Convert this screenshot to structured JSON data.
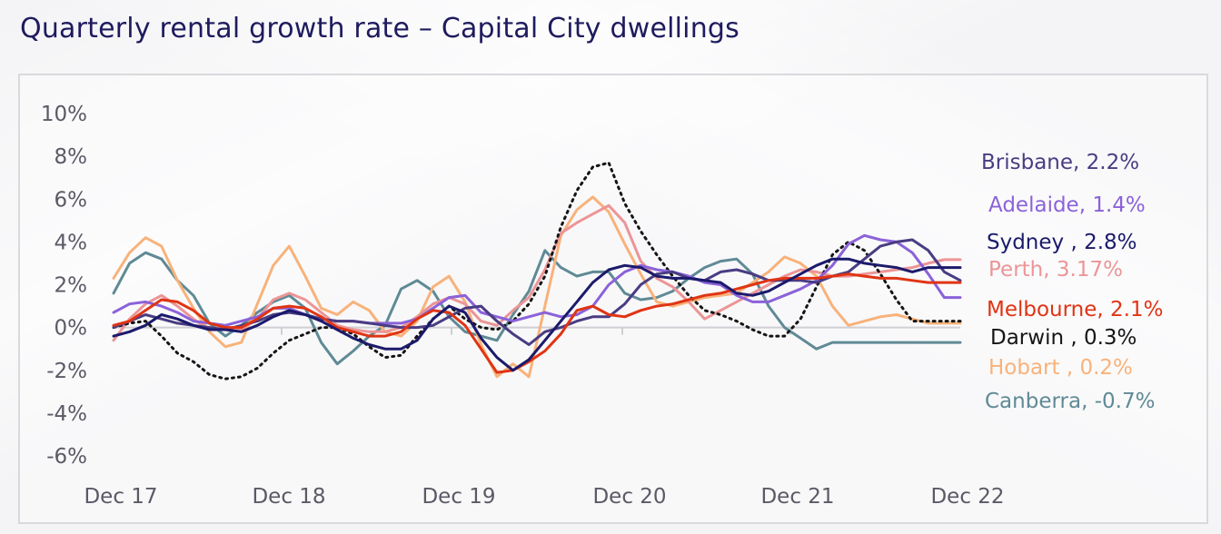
{
  "title": "Quarterly rental growth rate – Capital City dwellings",
  "chart_data": {
    "type": "line",
    "title": "Quarterly rental growth rate – Capital City dwellings",
    "ylim": [
      -6,
      10
    ],
    "y_ticks": [
      "10%",
      "8%",
      "6%",
      "4%",
      "2%",
      "0%",
      "-2%",
      "-4%",
      "-6%"
    ],
    "x_ticks": [
      "Dec 17",
      "Dec 18",
      "Dec 19",
      "Dec 20",
      "Dec 21",
      "Dec 22"
    ],
    "x_start": "Dec 17",
    "x_end": "Dec 22",
    "x_unit": "monthly",
    "grid": false,
    "legend": "right, direct labels",
    "series": [
      {
        "name": "Brisbane",
        "label": "Brisbane, 2.2%",
        "color": "#4a3c82",
        "dashed": false,
        "values": [
          0.0,
          0.3,
          0.6,
          0.4,
          0.2,
          0.1,
          0.0,
          -0.1,
          0.1,
          0.3,
          0.6,
          0.7,
          0.6,
          0.4,
          0.3,
          0.3,
          0.2,
          0.1,
          0.0,
          0.0,
          0.1,
          0.5,
          0.9,
          1.0,
          0.3,
          -0.3,
          -0.8,
          -0.2,
          0.0,
          0.3,
          0.5,
          0.5,
          1.1,
          2.0,
          2.5,
          2.6,
          2.3,
          2.2,
          2.6,
          2.7,
          2.5,
          2.2,
          2.2,
          2.2,
          2.1,
          2.4,
          2.6,
          3.2,
          3.8,
          4.0,
          4.1,
          3.6,
          2.6,
          2.2
        ]
      },
      {
        "name": "Adelaide",
        "label": "Adelaide, 1.4%",
        "color": "#8b62d9",
        "dashed": false,
        "values": [
          0.7,
          1.1,
          1.2,
          1.0,
          0.7,
          0.3,
          0.2,
          0.1,
          0.3,
          0.5,
          0.9,
          0.9,
          0.6,
          0.4,
          0.3,
          0.3,
          0.2,
          0.2,
          0.2,
          0.4,
          0.9,
          1.4,
          1.5,
          0.7,
          0.5,
          0.3,
          0.5,
          0.7,
          0.5,
          0.6,
          1.0,
          2.0,
          2.6,
          2.9,
          2.7,
          2.6,
          2.4,
          2.1,
          2.0,
          1.5,
          1.2,
          1.2,
          1.5,
          1.8,
          2.2,
          2.9,
          3.9,
          4.3,
          4.1,
          4.0,
          3.5,
          2.5,
          1.4,
          1.4
        ]
      },
      {
        "name": "Sydney",
        "label": "Sydney , 2.8%",
        "color": "#1b1a6b",
        "dashed": false,
        "values": [
          -0.4,
          -0.2,
          0.1,
          0.6,
          0.4,
          0.1,
          -0.1,
          -0.1,
          -0.2,
          0.1,
          0.5,
          0.8,
          0.6,
          0.3,
          -0.1,
          -0.5,
          -0.8,
          -1.0,
          -1.0,
          -0.6,
          0.4,
          1.0,
          0.7,
          -0.5,
          -1.4,
          -2.0,
          -1.5,
          -0.6,
          0.3,
          1.2,
          2.1,
          2.7,
          2.9,
          2.8,
          2.4,
          2.3,
          2.3,
          2.2,
          2.1,
          1.6,
          1.5,
          1.7,
          2.1,
          2.5,
          2.9,
          3.2,
          3.2,
          3.0,
          2.9,
          2.8,
          2.6,
          2.8,
          2.8,
          2.8
        ]
      },
      {
        "name": "Perth",
        "label": "Perth, 3.17%",
        "color": "#ec9596",
        "dashed": false,
        "values": [
          -0.6,
          0.4,
          1.1,
          1.5,
          1.0,
          0.4,
          -0.1,
          -0.1,
          -0.1,
          0.4,
          1.3,
          1.6,
          1.3,
          0.7,
          0.1,
          -0.1,
          -0.2,
          -0.2,
          0.0,
          0.5,
          1.1,
          1.4,
          1.1,
          0.3,
          0.1,
          0.8,
          1.4,
          2.7,
          4.4,
          4.9,
          5.3,
          5.7,
          4.9,
          3.1,
          2.3,
          1.9,
          1.2,
          0.4,
          0.8,
          1.2,
          1.6,
          2.0,
          2.4,
          2.7,
          2.6,
          2.4,
          2.4,
          2.5,
          2.6,
          2.7,
          2.8,
          3.0,
          3.17,
          3.17
        ]
      },
      {
        "name": "Melbourne",
        "label": "Melbourne, 2.1%",
        "color": "#e03414",
        "dashed": false,
        "values": [
          0.1,
          0.3,
          0.8,
          1.3,
          1.2,
          0.8,
          0.2,
          0.0,
          0.0,
          0.4,
          0.9,
          1.0,
          0.9,
          0.5,
          0.0,
          -0.2,
          -0.4,
          -0.4,
          -0.2,
          0.4,
          0.8,
          0.7,
          0.1,
          -1.0,
          -2.1,
          -2.0,
          -1.6,
          -1.1,
          -0.3,
          0.8,
          1.0,
          0.6,
          0.5,
          0.8,
          1.0,
          1.1,
          1.3,
          1.5,
          1.6,
          1.8,
          2.0,
          2.2,
          2.3,
          2.3,
          2.3,
          2.4,
          2.5,
          2.4,
          2.3,
          2.3,
          2.2,
          2.1,
          2.1,
          2.1
        ]
      },
      {
        "name": "Darwin",
        "label": "Darwin , 0.3%",
        "color": "#151515",
        "dashed": true,
        "values": [
          0.0,
          0.2,
          0.3,
          -0.4,
          -1.2,
          -1.6,
          -2.2,
          -2.4,
          -2.3,
          -1.9,
          -1.2,
          -0.6,
          -0.3,
          0.0,
          0.0,
          -0.3,
          -0.9,
          -1.4,
          -1.3,
          -0.4,
          0.4,
          1.0,
          0.4,
          0.0,
          -0.1,
          0.3,
          1.1,
          2.4,
          4.7,
          6.4,
          7.5,
          7.7,
          5.8,
          4.5,
          3.4,
          2.4,
          1.5,
          0.8,
          0.6,
          0.3,
          -0.1,
          -0.4,
          -0.4,
          0.4,
          1.9,
          3.4,
          4.0,
          3.6,
          2.5,
          1.3,
          0.3,
          0.3,
          0.3,
          0.3
        ]
      },
      {
        "name": "Hobart",
        "label": "Hobart , 0.2%",
        "color": "#f8b27a",
        "dashed": false,
        "values": [
          2.3,
          3.5,
          4.2,
          3.8,
          2.2,
          0.9,
          -0.2,
          -0.9,
          -0.7,
          1.1,
          2.9,
          3.8,
          2.4,
          0.9,
          0.6,
          1.2,
          0.8,
          -0.2,
          -0.4,
          0.3,
          1.9,
          2.4,
          1.2,
          -0.8,
          -2.3,
          -1.7,
          -2.3,
          1.0,
          4.3,
          5.5,
          6.1,
          5.4,
          3.9,
          2.5,
          1.2,
          1.0,
          1.2,
          1.4,
          1.5,
          1.6,
          2.1,
          2.6,
          3.3,
          3.0,
          2.4,
          1.0,
          0.1,
          0.3,
          0.5,
          0.6,
          0.4,
          0.2,
          0.2,
          0.2
        ]
      },
      {
        "name": "Canberra",
        "label": "Canberra, -0.7%",
        "color": "#5f8a95",
        "dashed": false,
        "values": [
          1.6,
          3.0,
          3.5,
          3.2,
          2.2,
          1.5,
          0.2,
          -0.4,
          0.1,
          0.7,
          1.2,
          1.5,
          0.9,
          -0.7,
          -1.7,
          -1.1,
          -0.4,
          0.1,
          1.8,
          2.2,
          1.7,
          0.5,
          -0.2,
          -0.4,
          -0.6,
          0.6,
          1.7,
          3.6,
          2.8,
          2.4,
          2.6,
          2.6,
          1.6,
          1.3,
          1.4,
          1.7,
          2.3,
          2.8,
          3.1,
          3.2,
          2.5,
          1.0,
          0.0,
          -0.5,
          -1.0,
          -0.7,
          -0.7,
          -0.7,
          -0.7,
          -0.7,
          -0.7,
          -0.7,
          -0.7,
          -0.7
        ]
      }
    ]
  }
}
